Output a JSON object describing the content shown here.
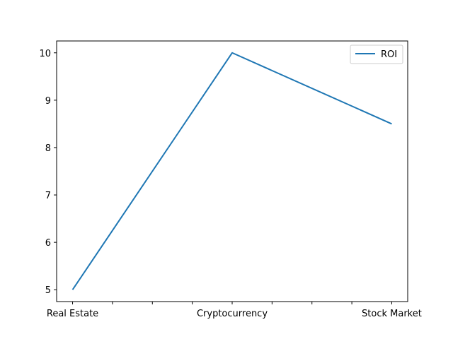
{
  "chart_data": {
    "type": "line",
    "title": "",
    "xlabel": "",
    "ylabel": "",
    "categories": [
      "Real Estate",
      "Cryptocurrency",
      "Stock Market"
    ],
    "series": [
      {
        "name": "ROI",
        "values": [
          5,
          10,
          8.5
        ],
        "color": "#1f77b4"
      }
    ],
    "ylim": [
      4.75,
      10.25
    ],
    "yticks": [
      5,
      6,
      7,
      8,
      9,
      10
    ],
    "xtick_label_positions": [
      0,
      1,
      2
    ],
    "xtick_minor_positions": [
      0.25,
      0.5,
      0.75,
      1.25,
      1.5,
      1.75
    ],
    "grid": false,
    "legend": "top-right"
  }
}
